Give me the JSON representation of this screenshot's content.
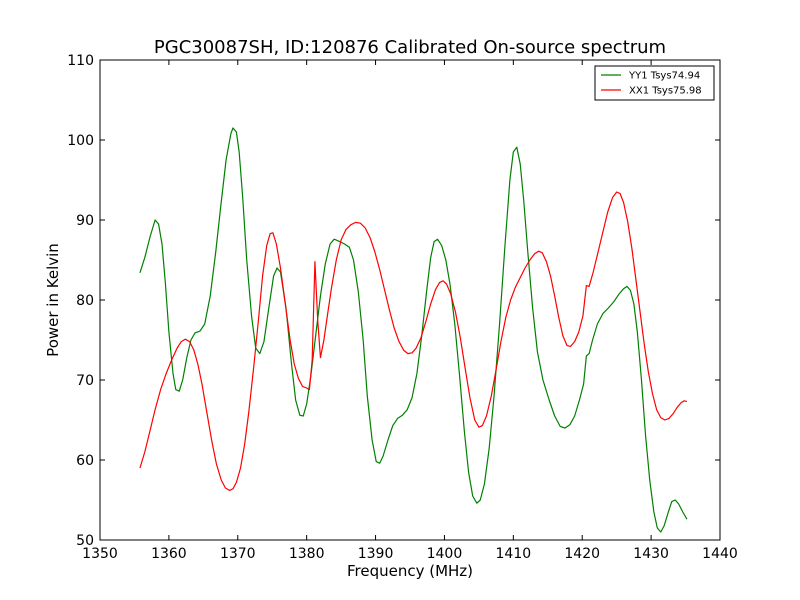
{
  "chart_data": {
    "type": "line",
    "title": "PGC30087SH, ID:120876 Calibrated On-source spectrum",
    "xlabel": "Frequency (MHz)",
    "ylabel": "Power in Kelvin",
    "xlim": [
      1350,
      1440
    ],
    "ylim": [
      50,
      110
    ],
    "xticks": [
      1350,
      1360,
      1370,
      1380,
      1390,
      1400,
      1410,
      1420,
      1430,
      1440
    ],
    "yticks": [
      50,
      60,
      70,
      80,
      90,
      100,
      110
    ],
    "grid": false,
    "legend_position": "top-right",
    "series": [
      {
        "name": "YY1 Tsys74.94",
        "color": "#008000",
        "points": [
          [
            1355.8,
            83.4
          ],
          [
            1356.5,
            85.3
          ],
          [
            1357.3,
            88.0
          ],
          [
            1358.0,
            90.0
          ],
          [
            1358.5,
            89.5
          ],
          [
            1359.0,
            87.0
          ],
          [
            1359.5,
            82.0
          ],
          [
            1360.0,
            76.0
          ],
          [
            1360.6,
            70.8
          ],
          [
            1361.0,
            68.8
          ],
          [
            1361.5,
            68.6
          ],
          [
            1362.0,
            70.0
          ],
          [
            1362.6,
            72.8
          ],
          [
            1363.2,
            75.0
          ],
          [
            1363.8,
            75.9
          ],
          [
            1364.5,
            76.1
          ],
          [
            1365.2,
            77.0
          ],
          [
            1366.0,
            80.5
          ],
          [
            1366.8,
            86.0
          ],
          [
            1367.5,
            91.5
          ],
          [
            1368.3,
            97.5
          ],
          [
            1369.0,
            100.8
          ],
          [
            1369.3,
            101.5
          ],
          [
            1369.8,
            101.0
          ],
          [
            1370.2,
            98.5
          ],
          [
            1370.7,
            93.0
          ],
          [
            1371.3,
            85.0
          ],
          [
            1372.0,
            78.0
          ],
          [
            1372.6,
            74.0
          ],
          [
            1373.2,
            73.3
          ],
          [
            1373.8,
            74.8
          ],
          [
            1374.5,
            79.0
          ],
          [
            1375.2,
            83.0
          ],
          [
            1375.7,
            84.0
          ],
          [
            1376.2,
            83.5
          ],
          [
            1377.0,
            79.0
          ],
          [
            1377.8,
            72.0
          ],
          [
            1378.4,
            67.5
          ],
          [
            1379.0,
            65.6
          ],
          [
            1379.5,
            65.5
          ],
          [
            1380.0,
            67.0
          ],
          [
            1380.6,
            70.5
          ],
          [
            1381.3,
            75.5
          ],
          [
            1382.0,
            80.5
          ],
          [
            1382.7,
            84.5
          ],
          [
            1383.4,
            87.0
          ],
          [
            1384.0,
            87.6
          ],
          [
            1384.8,
            87.3
          ],
          [
            1385.5,
            87.0
          ],
          [
            1386.2,
            86.6
          ],
          [
            1386.8,
            85.0
          ],
          [
            1387.5,
            81.0
          ],
          [
            1388.2,
            75.0
          ],
          [
            1388.8,
            68.0
          ],
          [
            1389.5,
            62.5
          ],
          [
            1390.1,
            59.8
          ],
          [
            1390.6,
            59.6
          ],
          [
            1391.1,
            60.5
          ],
          [
            1391.8,
            62.5
          ],
          [
            1392.5,
            64.3
          ],
          [
            1393.2,
            65.2
          ],
          [
            1393.9,
            65.6
          ],
          [
            1394.6,
            66.3
          ],
          [
            1395.3,
            67.8
          ],
          [
            1396.0,
            70.8
          ],
          [
            1396.7,
            75.5
          ],
          [
            1397.4,
            81.0
          ],
          [
            1398.0,
            85.3
          ],
          [
            1398.5,
            87.3
          ],
          [
            1399.0,
            87.6
          ],
          [
            1399.6,
            86.8
          ],
          [
            1400.2,
            85.0
          ],
          [
            1400.8,
            82.0
          ],
          [
            1401.5,
            77.0
          ],
          [
            1402.2,
            70.5
          ],
          [
            1402.9,
            63.5
          ],
          [
            1403.5,
            58.5
          ],
          [
            1404.1,
            55.5
          ],
          [
            1404.7,
            54.6
          ],
          [
            1405.2,
            55.0
          ],
          [
            1405.8,
            57.0
          ],
          [
            1406.5,
            61.5
          ],
          [
            1407.2,
            68.0
          ],
          [
            1408.0,
            77.0
          ],
          [
            1408.8,
            87.0
          ],
          [
            1409.5,
            95.0
          ],
          [
            1410.0,
            98.5
          ],
          [
            1410.5,
            99.1
          ],
          [
            1411.0,
            97.0
          ],
          [
            1411.5,
            92.5
          ],
          [
            1412.1,
            86.0
          ],
          [
            1412.8,
            79.0
          ],
          [
            1413.5,
            73.5
          ],
          [
            1414.3,
            70.0
          ],
          [
            1415.2,
            67.5
          ],
          [
            1416.0,
            65.5
          ],
          [
            1416.8,
            64.2
          ],
          [
            1417.5,
            64.0
          ],
          [
            1418.2,
            64.4
          ],
          [
            1418.9,
            65.5
          ],
          [
            1419.6,
            67.5
          ],
          [
            1420.2,
            69.5
          ],
          [
            1420.6,
            73.0
          ],
          [
            1421.0,
            73.3
          ],
          [
            1421.5,
            75.0
          ],
          [
            1422.2,
            77.0
          ],
          [
            1423.0,
            78.3
          ],
          [
            1423.8,
            79.0
          ],
          [
            1424.6,
            79.8
          ],
          [
            1425.3,
            80.7
          ],
          [
            1426.0,
            81.4
          ],
          [
            1426.5,
            81.7
          ],
          [
            1427.0,
            81.2
          ],
          [
            1427.5,
            79.5
          ],
          [
            1428.0,
            76.0
          ],
          [
            1428.6,
            70.0
          ],
          [
            1429.2,
            63.0
          ],
          [
            1429.8,
            57.5
          ],
          [
            1430.4,
            53.5
          ],
          [
            1430.9,
            51.5
          ],
          [
            1431.4,
            51.0
          ],
          [
            1431.9,
            51.8
          ],
          [
            1432.5,
            53.5
          ],
          [
            1433.0,
            54.8
          ],
          [
            1433.5,
            55.0
          ],
          [
            1434.0,
            54.5
          ],
          [
            1434.6,
            53.5
          ],
          [
            1435.2,
            52.6
          ]
        ]
      },
      {
        "name": "XX1 Tsys75.98",
        "color": "#ff0000",
        "points": [
          [
            1355.8,
            59.0
          ],
          [
            1356.5,
            61.0
          ],
          [
            1357.3,
            63.8
          ],
          [
            1358.0,
            66.3
          ],
          [
            1358.8,
            68.8
          ],
          [
            1359.6,
            70.8
          ],
          [
            1360.4,
            72.5
          ],
          [
            1361.2,
            74.0
          ],
          [
            1361.8,
            74.8
          ],
          [
            1362.4,
            75.1
          ],
          [
            1363.0,
            74.8
          ],
          [
            1363.6,
            73.8
          ],
          [
            1364.2,
            72.0
          ],
          [
            1364.8,
            69.5
          ],
          [
            1365.5,
            66.0
          ],
          [
            1366.2,
            62.5
          ],
          [
            1366.9,
            59.5
          ],
          [
            1367.6,
            57.5
          ],
          [
            1368.2,
            56.5
          ],
          [
            1368.8,
            56.2
          ],
          [
            1369.3,
            56.4
          ],
          [
            1369.8,
            57.2
          ],
          [
            1370.4,
            59.0
          ],
          [
            1371.0,
            62.0
          ],
          [
            1371.6,
            66.0
          ],
          [
            1372.3,
            71.5
          ],
          [
            1373.0,
            77.5
          ],
          [
            1373.6,
            83.0
          ],
          [
            1374.2,
            86.8
          ],
          [
            1374.7,
            88.3
          ],
          [
            1375.1,
            88.4
          ],
          [
            1375.6,
            87.0
          ],
          [
            1376.2,
            84.0
          ],
          [
            1376.9,
            79.5
          ],
          [
            1377.6,
            75.0
          ],
          [
            1378.2,
            72.0
          ],
          [
            1378.8,
            70.2
          ],
          [
            1379.4,
            69.2
          ],
          [
            1380.0,
            69.0
          ],
          [
            1380.4,
            68.8
          ],
          [
            1380.8,
            72.5
          ],
          [
            1381.2,
            84.8
          ],
          [
            1381.6,
            77.5
          ],
          [
            1382.0,
            72.8
          ],
          [
            1382.5,
            75.0
          ],
          [
            1383.0,
            78.0
          ],
          [
            1383.6,
            81.5
          ],
          [
            1384.3,
            85.0
          ],
          [
            1385.0,
            87.5
          ],
          [
            1385.7,
            88.8
          ],
          [
            1386.4,
            89.4
          ],
          [
            1387.1,
            89.7
          ],
          [
            1387.8,
            89.6
          ],
          [
            1388.5,
            89.0
          ],
          [
            1389.2,
            87.8
          ],
          [
            1389.9,
            86.0
          ],
          [
            1390.6,
            83.8
          ],
          [
            1391.3,
            81.3
          ],
          [
            1392.0,
            78.8
          ],
          [
            1392.7,
            76.5
          ],
          [
            1393.4,
            74.8
          ],
          [
            1394.1,
            73.7
          ],
          [
            1394.7,
            73.3
          ],
          [
            1395.3,
            73.4
          ],
          [
            1395.9,
            74.0
          ],
          [
            1396.6,
            75.3
          ],
          [
            1397.3,
            77.3
          ],
          [
            1398.0,
            79.5
          ],
          [
            1398.7,
            81.3
          ],
          [
            1399.3,
            82.2
          ],
          [
            1399.8,
            82.4
          ],
          [
            1400.3,
            82.0
          ],
          [
            1400.9,
            80.8
          ],
          [
            1401.6,
            78.5
          ],
          [
            1402.3,
            75.3
          ],
          [
            1403.0,
            71.5
          ],
          [
            1403.7,
            67.8
          ],
          [
            1404.4,
            65.0
          ],
          [
            1405.0,
            64.1
          ],
          [
            1405.5,
            64.3
          ],
          [
            1406.1,
            65.5
          ],
          [
            1406.8,
            68.0
          ],
          [
            1407.5,
            71.3
          ],
          [
            1408.2,
            74.8
          ],
          [
            1408.9,
            77.8
          ],
          [
            1409.6,
            80.0
          ],
          [
            1410.3,
            81.6
          ],
          [
            1411.0,
            82.8
          ],
          [
            1411.7,
            84.0
          ],
          [
            1412.4,
            85.0
          ],
          [
            1413.1,
            85.8
          ],
          [
            1413.7,
            86.1
          ],
          [
            1414.2,
            85.9
          ],
          [
            1414.8,
            84.8
          ],
          [
            1415.4,
            83.0
          ],
          [
            1416.0,
            80.5
          ],
          [
            1416.6,
            77.8
          ],
          [
            1417.2,
            75.5
          ],
          [
            1417.8,
            74.3
          ],
          [
            1418.3,
            74.2
          ],
          [
            1418.9,
            74.8
          ],
          [
            1419.5,
            76.0
          ],
          [
            1420.1,
            78.0
          ],
          [
            1420.6,
            81.8
          ],
          [
            1421.0,
            81.7
          ],
          [
            1421.6,
            83.5
          ],
          [
            1422.3,
            86.0
          ],
          [
            1423.0,
            88.5
          ],
          [
            1423.7,
            91.0
          ],
          [
            1424.4,
            92.8
          ],
          [
            1425.0,
            93.5
          ],
          [
            1425.5,
            93.3
          ],
          [
            1426.0,
            92.2
          ],
          [
            1426.6,
            89.8
          ],
          [
            1427.2,
            86.5
          ],
          [
            1427.8,
            82.5
          ],
          [
            1428.4,
            78.5
          ],
          [
            1429.0,
            74.5
          ],
          [
            1429.6,
            71.0
          ],
          [
            1430.2,
            68.3
          ],
          [
            1430.8,
            66.3
          ],
          [
            1431.4,
            65.3
          ],
          [
            1432.0,
            65.0
          ],
          [
            1432.6,
            65.2
          ],
          [
            1433.2,
            65.8
          ],
          [
            1433.8,
            66.6
          ],
          [
            1434.4,
            67.2
          ],
          [
            1434.8,
            67.4
          ],
          [
            1435.2,
            67.3
          ]
        ]
      }
    ]
  }
}
